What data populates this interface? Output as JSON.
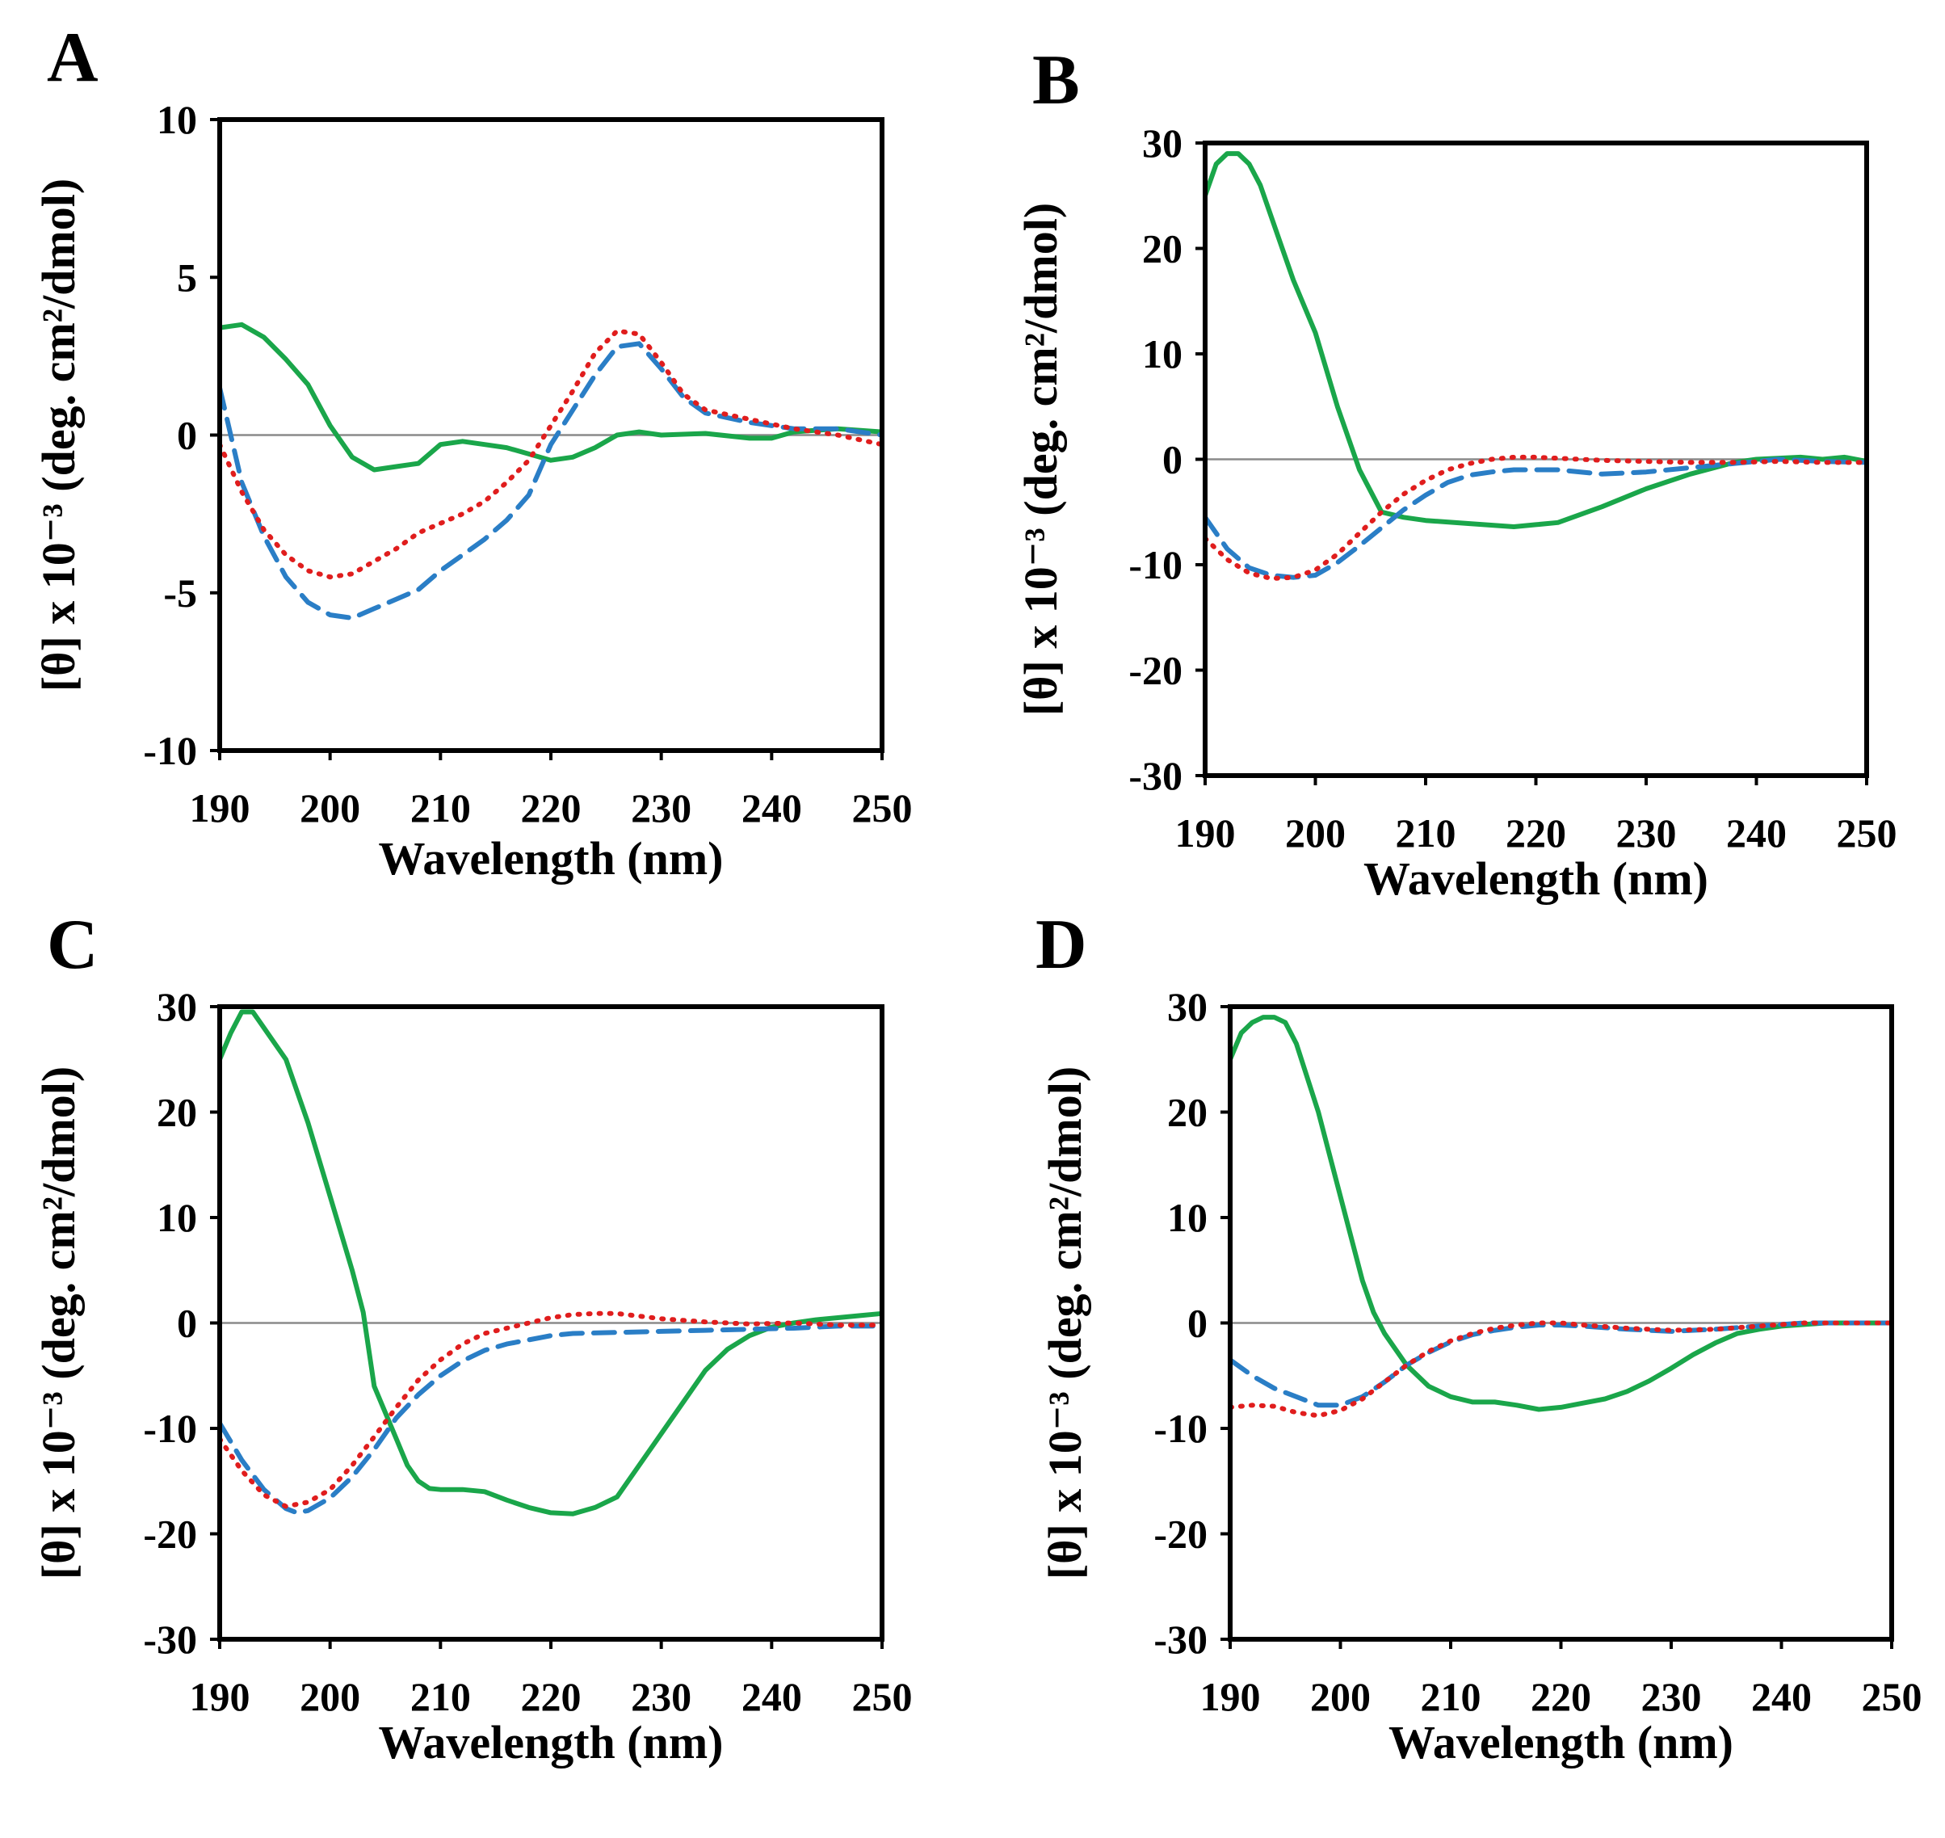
{
  "chart_data": [
    {
      "panel": "A",
      "type": "line",
      "xlabel": "Wavelength (nm)",
      "ylabel": "[θ] x 10⁻³ (deg. cm²/dmol)",
      "xlim": [
        190,
        250
      ],
      "ylim": [
        -10,
        10
      ],
      "xticks": [
        190,
        200,
        210,
        220,
        230,
        240,
        250
      ],
      "yticks": [
        -10,
        -5,
        0,
        5,
        10
      ],
      "legend": "none",
      "grid": false,
      "series": [
        {
          "color": "#1aa64a",
          "style": "solid",
          "x": [
            190,
            192,
            194,
            196,
            198,
            200,
            202,
            204,
            206,
            208,
            210,
            212,
            214,
            216,
            218,
            220,
            222,
            224,
            226,
            228,
            230,
            234,
            238,
            240,
            242,
            246,
            250
          ],
          "y": [
            3.4,
            3.5,
            3.1,
            2.4,
            1.6,
            0.3,
            -0.7,
            -1.1,
            -1.0,
            -0.9,
            -0.3,
            -0.2,
            -0.3,
            -0.4,
            -0.6,
            -0.8,
            -0.7,
            -0.4,
            0.0,
            0.1,
            0.0,
            0.05,
            -0.1,
            -0.1,
            0.1,
            0.2,
            0.1
          ]
        },
        {
          "color": "#2a7ec6",
          "style": "dashed",
          "x": [
            190,
            192,
            194,
            196,
            198,
            200,
            202,
            204,
            206,
            208,
            210,
            212,
            214,
            216,
            218,
            220,
            222,
            224,
            226,
            228,
            230,
            232,
            234,
            238,
            242,
            246,
            250
          ],
          "y": [
            1.5,
            -1.5,
            -3.2,
            -4.5,
            -5.3,
            -5.7,
            -5.8,
            -5.5,
            -5.2,
            -4.9,
            -4.3,
            -3.8,
            -3.3,
            -2.7,
            -1.9,
            -0.3,
            0.8,
            1.9,
            2.8,
            2.9,
            2.1,
            1.2,
            0.7,
            0.4,
            0.2,
            0.2,
            0.0
          ]
        },
        {
          "color": "#e01d1d",
          "style": "dotted",
          "x": [
            190,
            192,
            194,
            196,
            198,
            200,
            202,
            204,
            206,
            208,
            210,
            212,
            214,
            216,
            218,
            220,
            222,
            224,
            226,
            228,
            230,
            232,
            234,
            238,
            242,
            246,
            250
          ],
          "y": [
            -0.3,
            -1.8,
            -3.0,
            -3.8,
            -4.3,
            -4.5,
            -4.4,
            -4.0,
            -3.6,
            -3.1,
            -2.8,
            -2.5,
            -2.1,
            -1.5,
            -0.8,
            0.3,
            1.4,
            2.6,
            3.3,
            3.2,
            2.3,
            1.3,
            0.8,
            0.5,
            0.2,
            0.0,
            -0.3
          ]
        }
      ]
    },
    {
      "panel": "B",
      "type": "line",
      "xlabel": "Wavelength (nm)",
      "ylabel": "[θ] x 10⁻³ (deg. cm²/dmol)",
      "xlim": [
        190,
        250
      ],
      "ylim": [
        -30,
        30
      ],
      "xticks": [
        190,
        200,
        210,
        220,
        230,
        240,
        250
      ],
      "yticks": [
        -30,
        -20,
        -10,
        0,
        10,
        20,
        30
      ],
      "legend": "none",
      "grid": false,
      "series": [
        {
          "color": "#1aa64a",
          "style": "solid",
          "x": [
            190,
            191,
            192,
            193,
            194,
            195,
            196,
            197,
            198,
            200,
            202,
            204,
            206,
            208,
            210,
            214,
            218,
            220,
            222,
            226,
            230,
            234,
            238,
            240,
            244,
            246,
            248,
            250
          ],
          "y": [
            25,
            28,
            29,
            29,
            28,
            26,
            23,
            20,
            17,
            12,
            5,
            -1,
            -5,
            -5.5,
            -5.8,
            -6.1,
            -6.4,
            -6.2,
            -6.0,
            -4.5,
            -2.8,
            -1.4,
            -0.3,
            0.0,
            0.2,
            0.0,
            0.2,
            -0.2
          ]
        },
        {
          "color": "#2a7ec6",
          "style": "dashed",
          "x": [
            190,
            192,
            194,
            196,
            198,
            200,
            202,
            204,
            206,
            208,
            210,
            212,
            214,
            216,
            218,
            220,
            222,
            226,
            230,
            234,
            238,
            242,
            246,
            250
          ],
          "y": [
            -5.5,
            -8.5,
            -10.3,
            -11.0,
            -11.2,
            -11.0,
            -9.8,
            -8.2,
            -6.5,
            -4.8,
            -3.4,
            -2.2,
            -1.5,
            -1.2,
            -1.0,
            -1.0,
            -1.0,
            -1.4,
            -1.2,
            -0.8,
            -0.4,
            0.0,
            -0.2,
            -0.3
          ]
        },
        {
          "color": "#e01d1d",
          "style": "dotted",
          "x": [
            190,
            192,
            194,
            196,
            198,
            200,
            202,
            204,
            206,
            208,
            210,
            212,
            214,
            216,
            218,
            220,
            222,
            226,
            230,
            234,
            238,
            242,
            246,
            250
          ],
          "y": [
            -7.5,
            -9.5,
            -10.8,
            -11.3,
            -11.2,
            -10.5,
            -9.0,
            -7.0,
            -5.0,
            -3.3,
            -2.0,
            -1.0,
            -0.4,
            0.0,
            0.2,
            0.2,
            0.1,
            -0.1,
            -0.2,
            -0.3,
            -0.3,
            -0.2,
            -0.3,
            -0.3
          ]
        }
      ]
    },
    {
      "panel": "C",
      "type": "line",
      "xlabel": "Wavelength (nm)",
      "ylabel": "[θ] x 10⁻³ (deg. cm²/dmol)",
      "xlim": [
        190,
        250
      ],
      "ylim": [
        -30,
        30
      ],
      "xticks": [
        190,
        200,
        210,
        220,
        230,
        240,
        250
      ],
      "yticks": [
        -30,
        -20,
        -10,
        0,
        10,
        20,
        30
      ],
      "legend": "none",
      "grid": false,
      "series": [
        {
          "color": "#1aa64a",
          "style": "solid",
          "x": [
            190,
            191,
            192,
            193,
            194,
            195,
            196,
            198,
            200,
            202,
            203,
            204,
            206,
            207,
            208,
            209,
            210,
            212,
            214,
            216,
            218,
            220,
            222,
            224,
            226,
            228,
            230,
            232,
            234,
            236,
            238,
            240,
            242,
            244,
            246,
            248,
            250
          ],
          "y": [
            25,
            27.5,
            29.5,
            29.5,
            28,
            26.5,
            25,
            19,
            12,
            5,
            1,
            -6,
            -11,
            -13.5,
            -15,
            -15.7,
            -15.8,
            -15.8,
            -16.0,
            -16.8,
            -17.5,
            -18.0,
            -18.1,
            -17.5,
            -16.5,
            -13.5,
            -10.5,
            -7.5,
            -4.5,
            -2.5,
            -1.2,
            -0.4,
            0.0,
            0.3,
            0.5,
            0.7,
            0.9
          ]
        },
        {
          "color": "#2a7ec6",
          "style": "dashed",
          "x": [
            190,
            192,
            194,
            196,
            197,
            198,
            200,
            202,
            204,
            206,
            208,
            210,
            212,
            214,
            216,
            218,
            220,
            222,
            226,
            230,
            234,
            238,
            242,
            246,
            250
          ],
          "y": [
            -9.5,
            -13,
            -15.8,
            -17.6,
            -18.0,
            -17.8,
            -16.6,
            -14.6,
            -12.0,
            -9.0,
            -6.8,
            -5.0,
            -3.6,
            -2.6,
            -2.0,
            -1.6,
            -1.2,
            -1.0,
            -0.9,
            -0.8,
            -0.7,
            -0.6,
            -0.5,
            -0.3,
            -0.3
          ]
        },
        {
          "color": "#e01d1d",
          "style": "dotted",
          "x": [
            190,
            192,
            194,
            196,
            198,
            200,
            202,
            204,
            206,
            208,
            210,
            212,
            214,
            216,
            218,
            220,
            222,
            224,
            226,
            230,
            234,
            238,
            242,
            246,
            250
          ],
          "y": [
            -11,
            -14,
            -16.3,
            -17.4,
            -17.0,
            -15.8,
            -13.5,
            -10.8,
            -8.0,
            -5.4,
            -3.5,
            -2.0,
            -1.0,
            -0.5,
            0.0,
            0.5,
            0.8,
            0.9,
            0.9,
            0.4,
            0.1,
            -0.1,
            0.0,
            -0.2,
            -0.2
          ]
        }
      ]
    },
    {
      "panel": "D",
      "type": "line",
      "xlabel": "Wavelength (nm)",
      "ylabel": "[θ] x 10⁻³ (deg. cm²/dmol)",
      "xlim": [
        190,
        250
      ],
      "ylim": [
        -30,
        30
      ],
      "xticks": [
        190,
        200,
        210,
        220,
        230,
        240,
        250
      ],
      "yticks": [
        -30,
        -20,
        -10,
        0,
        10,
        20,
        30
      ],
      "legend": "none",
      "grid": false,
      "series": [
        {
          "color": "#1aa64a",
          "style": "solid",
          "x": [
            190,
            191,
            192,
            193,
            194,
            195,
            196,
            198,
            200,
            202,
            203,
            204,
            206,
            208,
            210,
            212,
            214,
            216,
            218,
            220,
            222,
            224,
            226,
            228,
            230,
            232,
            234,
            236,
            238,
            240,
            244,
            246,
            250
          ],
          "y": [
            25,
            27.5,
            28.5,
            29,
            29,
            28.5,
            26.5,
            20,
            12,
            4,
            1,
            -1,
            -4,
            -6,
            -7,
            -7.5,
            -7.5,
            -7.8,
            -8.2,
            -8.0,
            -7.6,
            -7.2,
            -6.5,
            -5.5,
            -4.3,
            -3.0,
            -1.9,
            -1.0,
            -0.6,
            -0.3,
            0.0,
            0.0,
            0.0
          ]
        },
        {
          "color": "#2a7ec6",
          "style": "dashed",
          "x": [
            190,
            192,
            194,
            196,
            198,
            200,
            202,
            204,
            206,
            208,
            210,
            212,
            214,
            216,
            218,
            220,
            222,
            226,
            230,
            234,
            238,
            242,
            246,
            250
          ],
          "y": [
            -3.5,
            -5.0,
            -6.2,
            -7.0,
            -7.8,
            -7.8,
            -7.0,
            -5.6,
            -4.0,
            -2.8,
            -1.8,
            -1.1,
            -0.7,
            -0.4,
            -0.2,
            -0.2,
            -0.3,
            -0.6,
            -0.8,
            -0.6,
            -0.3,
            0.0,
            0.0,
            0.0
          ]
        },
        {
          "color": "#e01d1d",
          "style": "dotted",
          "x": [
            190,
            192,
            194,
            196,
            198,
            200,
            202,
            204,
            206,
            208,
            210,
            212,
            214,
            216,
            218,
            220,
            222,
            226,
            230,
            234,
            238,
            242,
            246,
            250
          ],
          "y": [
            -8.0,
            -7.8,
            -7.9,
            -8.5,
            -8.8,
            -8.3,
            -7.2,
            -5.6,
            -4.0,
            -2.7,
            -1.7,
            -1.0,
            -0.5,
            -0.2,
            0.0,
            0.0,
            -0.2,
            -0.5,
            -0.7,
            -0.6,
            -0.3,
            0.0,
            0.0,
            0.0
          ]
        }
      ]
    }
  ]
}
